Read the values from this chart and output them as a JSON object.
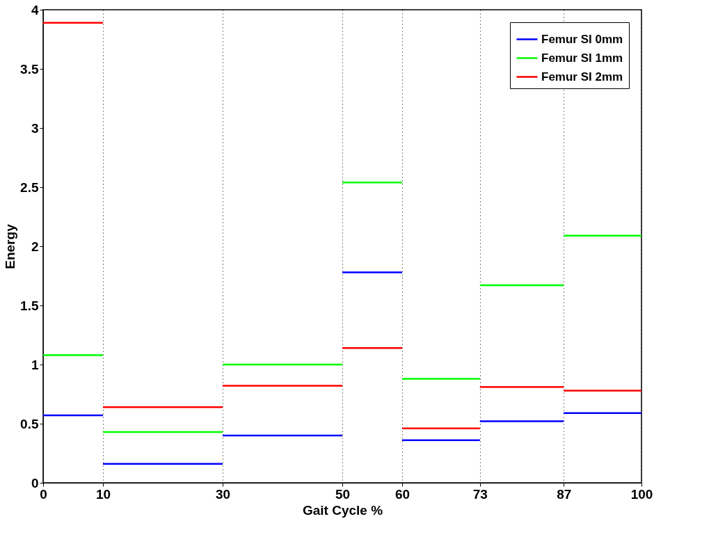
{
  "chart_data": {
    "type": "step",
    "xlabel": "Gait Cycle %",
    "ylabel": "Energy",
    "x": [
      0,
      10,
      30,
      50,
      60,
      73,
      87,
      100
    ],
    "series": [
      {
        "name": "Femur SI 0mm",
        "color": "#0000ff",
        "values": [
          0.57,
          0.16,
          0.4,
          1.78,
          0.36,
          0.52,
          0.59,
          0.59
        ]
      },
      {
        "name": "Femur SI 1mm",
        "color": "#00ff00",
        "values": [
          1.08,
          0.43,
          1.0,
          2.54,
          0.88,
          1.67,
          2.09,
          2.09
        ]
      },
      {
        "name": "Femur SI 2mm",
        "color": "#ff0000",
        "values": [
          3.89,
          0.64,
          0.82,
          1.14,
          0.46,
          0.81,
          0.78,
          0.78
        ]
      }
    ],
    "xlim": [
      0,
      100
    ],
    "xticks": [
      0,
      10,
      30,
      50,
      60,
      73,
      87,
      100
    ],
    "ylim": [
      0,
      4
    ],
    "yticks": [
      0,
      0.5,
      1,
      1.5,
      2,
      2.5,
      3,
      3.5,
      4
    ],
    "grid": "x",
    "legend": "top right",
    "line_style": "solid"
  }
}
